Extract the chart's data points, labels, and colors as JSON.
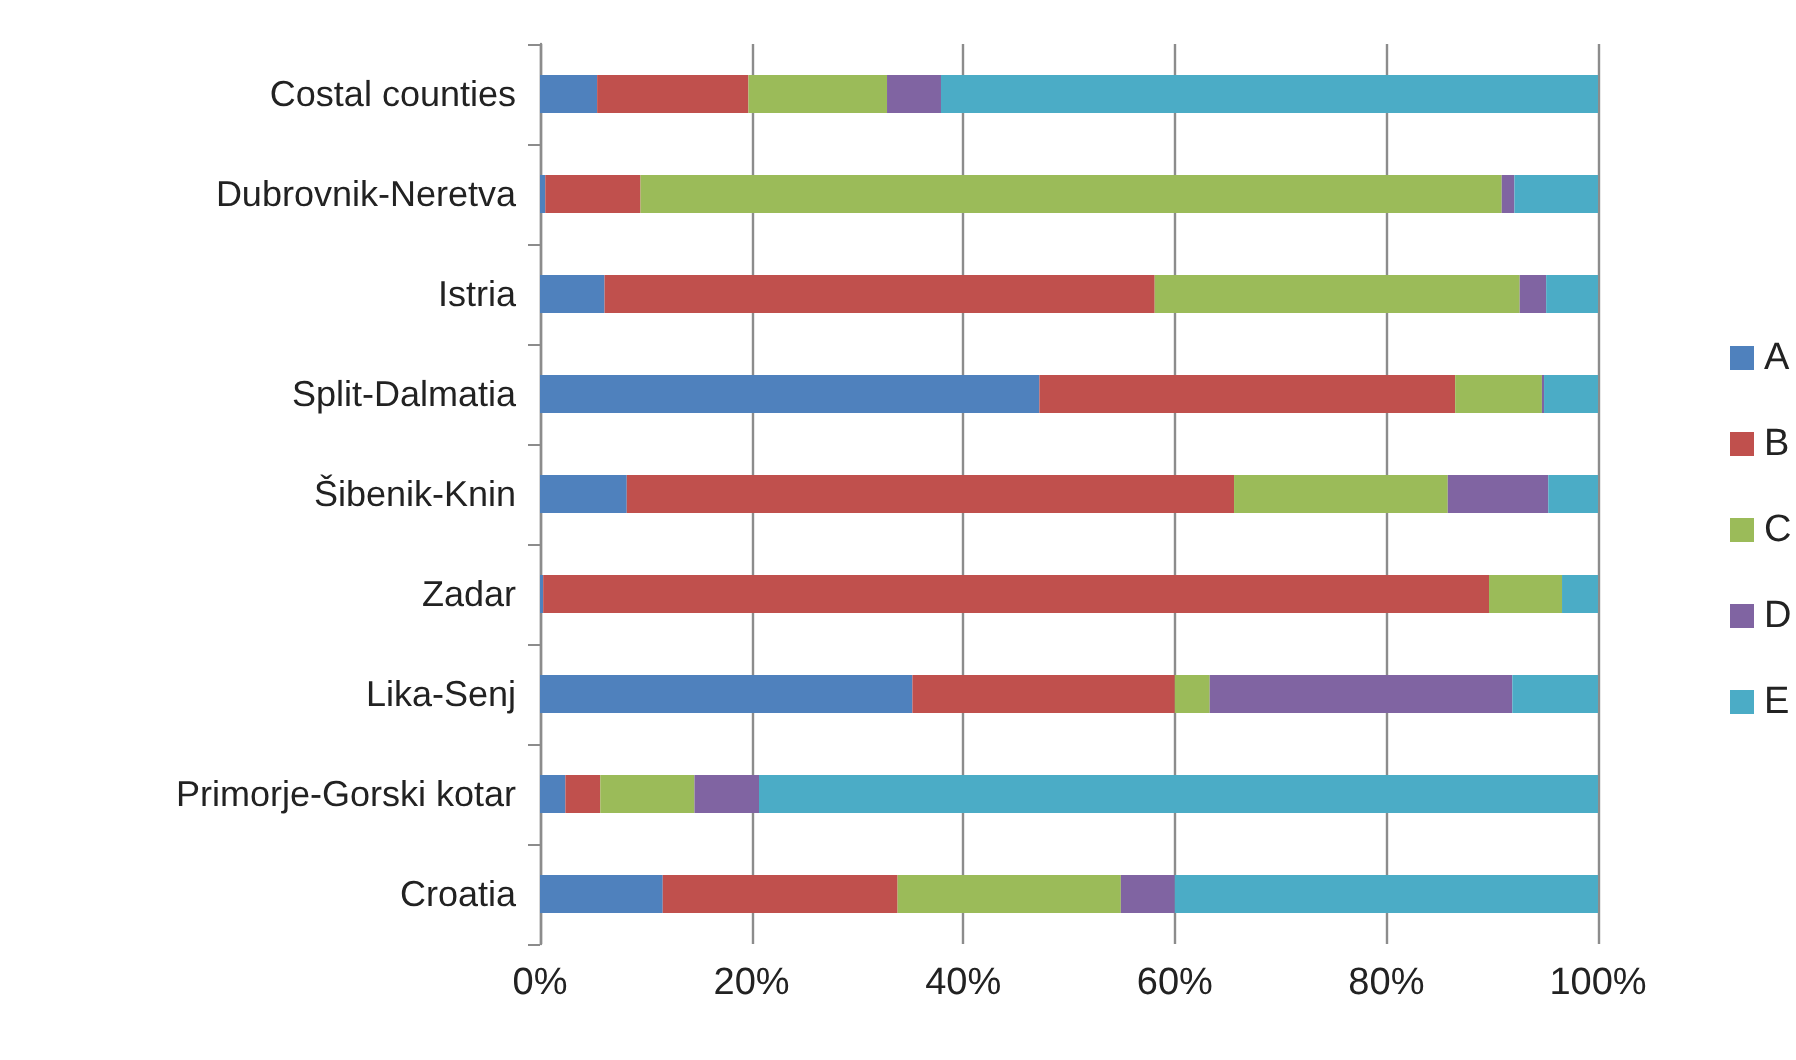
{
  "chart_data": {
    "type": "bar",
    "orientation": "horizontal",
    "stacked": true,
    "categories": [
      "Costal counties",
      "Dubrovnik-Neretva",
      "Istria",
      "Split-Dalmatia",
      "Šibenik-Knin",
      "Zadar",
      "Lika-Senj",
      "Primorje-Gorski kotar",
      "Croatia"
    ],
    "series": [
      {
        "name": "A",
        "color": "#4f81bd",
        "values": [
          5.4,
          0.5,
          6.1,
          47.2,
          8.2,
          0.3,
          35.2,
          2.4,
          11.6
        ]
      },
      {
        "name": "B",
        "color": "#c0504d",
        "values": [
          14.3,
          9.0,
          52.0,
          39.3,
          57.4,
          89.4,
          24.8,
          3.3,
          22.2
        ]
      },
      {
        "name": "C",
        "color": "#9bbb59",
        "values": [
          13.1,
          81.4,
          34.5,
          8.2,
          20.2,
          6.9,
          3.3,
          8.9,
          21.1
        ]
      },
      {
        "name": "D",
        "color": "#8064a2",
        "values": [
          5.1,
          1.2,
          2.5,
          0.2,
          9.5,
          0,
          28.6,
          6.1,
          5.1
        ]
      },
      {
        "name": "E",
        "color": "#4bacc6",
        "values": [
          62.1,
          7.9,
          4.9,
          5.1,
          4.7,
          3.4,
          8.1,
          79.3,
          40.0
        ]
      }
    ],
    "xlim": [
      0,
      100
    ],
    "xticks": [
      {
        "value": 0,
        "label": "0%"
      },
      {
        "value": 20,
        "label": "20%"
      },
      {
        "value": 40,
        "label": "40%"
      },
      {
        "value": 60,
        "label": "60%"
      },
      {
        "value": 80,
        "label": "80%"
      },
      {
        "value": 100,
        "label": "100%"
      }
    ],
    "grid": "x",
    "legend": "right"
  }
}
